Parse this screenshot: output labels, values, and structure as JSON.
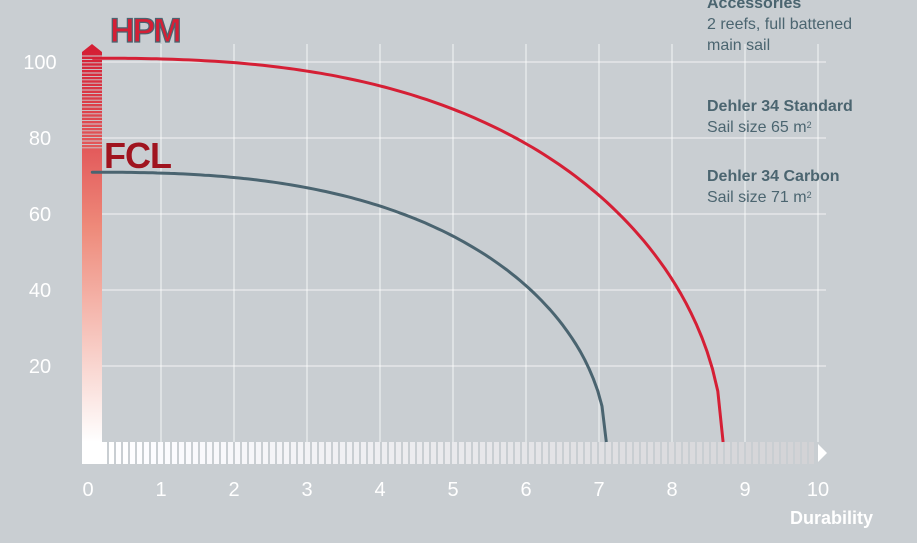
{
  "chart_data": {
    "type": "line",
    "xlabel": "Durability",
    "ylabel": "",
    "xlim": [
      0,
      10
    ],
    "ylim": [
      0,
      100
    ],
    "x_ticks": [
      "0",
      "1",
      "2",
      "3",
      "4",
      "5",
      "6",
      "7",
      "8",
      "9",
      "10"
    ],
    "y_ticks": [
      "20",
      "40",
      "60",
      "80",
      "100"
    ],
    "grid": true,
    "series": [
      {
        "name": "HPM",
        "color": "#d51f35",
        "y_start": 101,
        "x_end": 8.7
      },
      {
        "name": "FCL",
        "color": "#4a6470",
        "y_start": 71,
        "x_end": 7.1
      }
    ],
    "logos": {
      "hpm": "HPM",
      "fcl": "FCL"
    }
  },
  "info": {
    "accessories_heading": "Accessories",
    "accessories_line1": "2 reefs, full battened",
    "accessories_line2": "main sail",
    "standard_heading": "Dehler 34 Standard",
    "standard_size": "Sail size 65 m",
    "standard_sup": "2",
    "carbon_heading": "Dehler 34 Carbon",
    "carbon_size": "Sail size 71 m",
    "carbon_sup": "2"
  },
  "colors": {
    "background": "#c9ced2",
    "hpm_red": "#d51f35",
    "fcl_slate": "#4a6470",
    "gridline": "#ffffff"
  }
}
